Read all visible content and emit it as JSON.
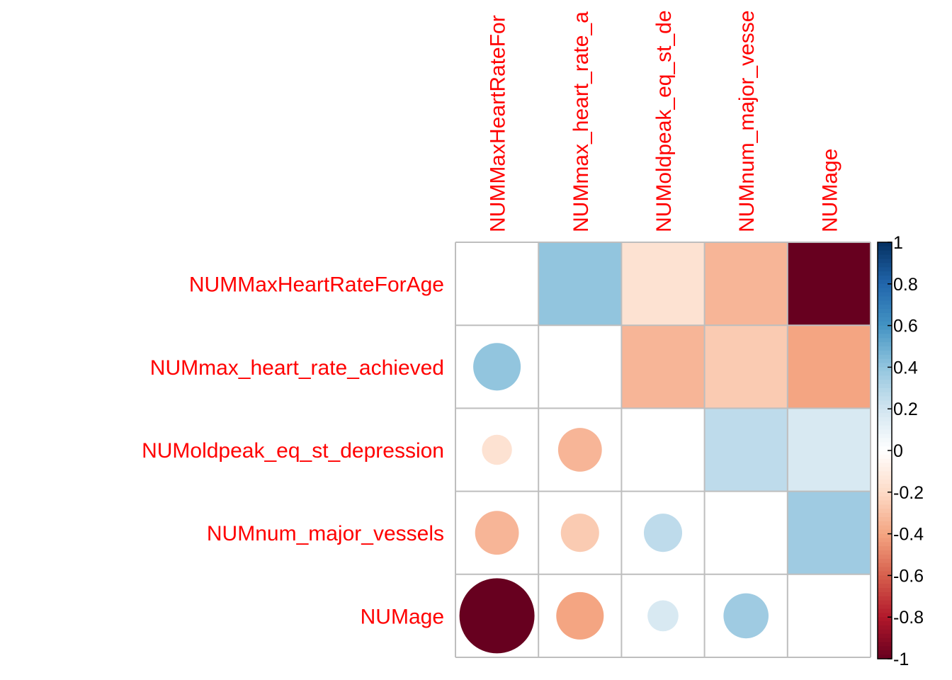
{
  "chart_data": {
    "type": "heatmap",
    "variables": [
      "NUMMaxHeartRateForAge",
      "NUMmax_heart_rate_achieved",
      "NUMoldpeak_eq_st_depression",
      "NUMnum_major_vessels",
      "NUMage"
    ],
    "column_labels": [
      "NUMMaxHeartRateFor",
      "NUMmax_heart_rate_a",
      "NUMoldpeak_eq_st_de",
      "NUMnum_major_vesse",
      "NUMage"
    ],
    "matrix": [
      [
        1.0,
        0.4,
        -0.16,
        -0.34,
        -1.0
      ],
      [
        0.4,
        1.0,
        -0.34,
        -0.26,
        -0.4
      ],
      [
        -0.16,
        -0.34,
        1.0,
        0.26,
        0.17
      ],
      [
        -0.34,
        -0.26,
        0.26,
        1.0,
        0.36
      ],
      [
        -1.0,
        -0.4,
        0.17,
        0.36,
        1.0
      ]
    ],
    "upper_triangle": "square",
    "lower_triangle": "circle",
    "diagonal": "blank",
    "legend": {
      "position": "right",
      "range": [
        -1,
        1
      ],
      "ticks": [
        "1",
        "0.8",
        "0.6",
        "0.4",
        "0.2",
        "0",
        "-0.2",
        "-0.4",
        "-0.6",
        "-0.8",
        "-1"
      ]
    },
    "label_color": "#ff0000",
    "colors": {
      "negative_end": "#67001f",
      "neutral": "#ffffff",
      "positive_end": "#053061",
      "grid": "#bebebe"
    }
  }
}
